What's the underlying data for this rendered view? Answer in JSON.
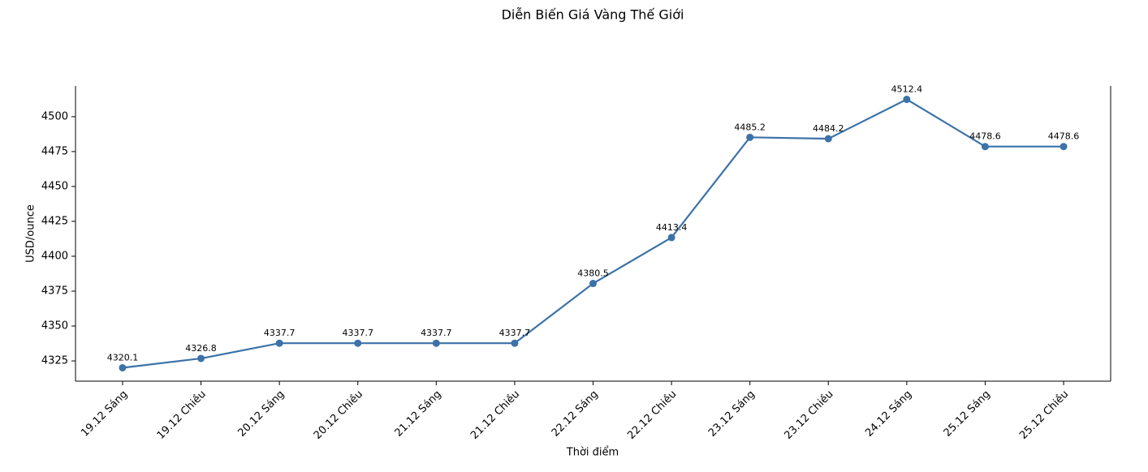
{
  "chart_data": {
    "type": "line",
    "title": "Diễn Biến Giá Vàng Thế Giới",
    "x_label": "Thời điểm",
    "y_label": "USD/ounce",
    "categories": [
      "19.12 Sáng",
      "19.12 Chiều",
      "20.12 Sáng",
      "20.12 Chiều",
      "21.12 Sáng",
      "21.12 Chiều",
      "22.12 Sáng",
      "22.12 Chiều",
      "23.12 Sáng",
      "23.12 Chiều",
      "24.12 Sáng",
      "25.12 Sáng",
      "25.12 Chiều"
    ],
    "series": [
      {
        "name": "USD/ounce",
        "color": "#3c72a8",
        "values": [
          4320.1,
          4326.8,
          4337.7,
          4337.7,
          4337.7,
          4337.7,
          4380.5,
          4413.4,
          4485.2,
          4484.2,
          4512.4,
          4478.6,
          4478.6
        ]
      }
    ],
    "ylim": [
      4310.5,
      4522.0
    ],
    "yticks": [
      4325,
      4350,
      4375,
      4400,
      4425,
      4450,
      4475,
      4500
    ],
    "grid": false
  }
}
